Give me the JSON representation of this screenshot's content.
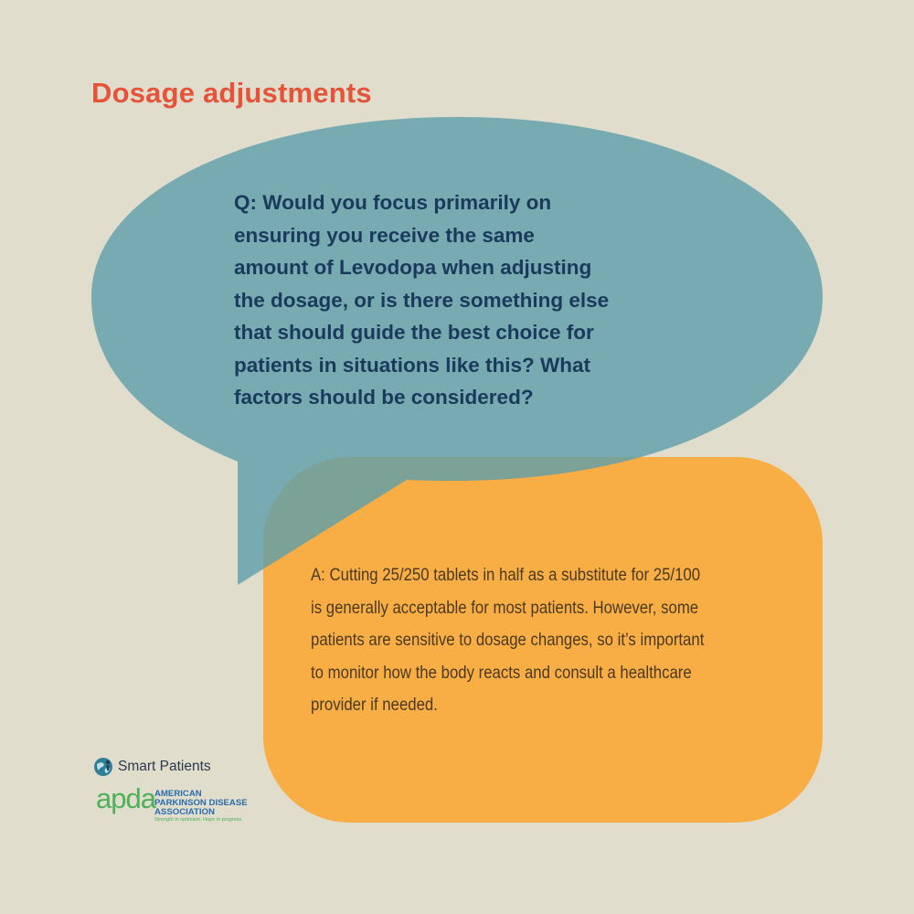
{
  "title": "Dosage adjustments",
  "question": {
    "lines": [
      "Q:  Would you focus primarily on",
      "ensuring you receive the same",
      "amount of Levodopa when adjusting",
      "the dosage, or is there something else",
      "that should guide the best choice for",
      "patients in situations like this? What",
      "factors should be considered?"
    ]
  },
  "answer": {
    "lines": [
      "A: Cutting 25/250 tablets in half as a substitute for 25/100",
      "is generally acceptable for most patients. However, some",
      "patients are sensitive to dosage changes, so it’s important",
      "to monitor how the body reacts and consult a healthcare",
      "provider if needed."
    ]
  },
  "logos": {
    "smart_patients": {
      "name": "Smart Patients",
      "icon": "smart-patients-globe-icon"
    },
    "apda": {
      "wordmark": "apda",
      "name_lines": [
        "AMERICAN",
        "PARKINSON DISEASE",
        "ASSOCIATION"
      ],
      "tagline": "Strength in optimism. Hope in progress."
    }
  },
  "colors": {
    "background": "#e0ddcc",
    "title": "#e4533a",
    "question_bubble": "#7aaeb8",
    "answer_bubble": "#f9ad45",
    "question_text": "#1a3a5c",
    "answer_text": "#4a3a22",
    "apda_green": "#4db158",
    "apda_blue": "#2a6cad"
  }
}
